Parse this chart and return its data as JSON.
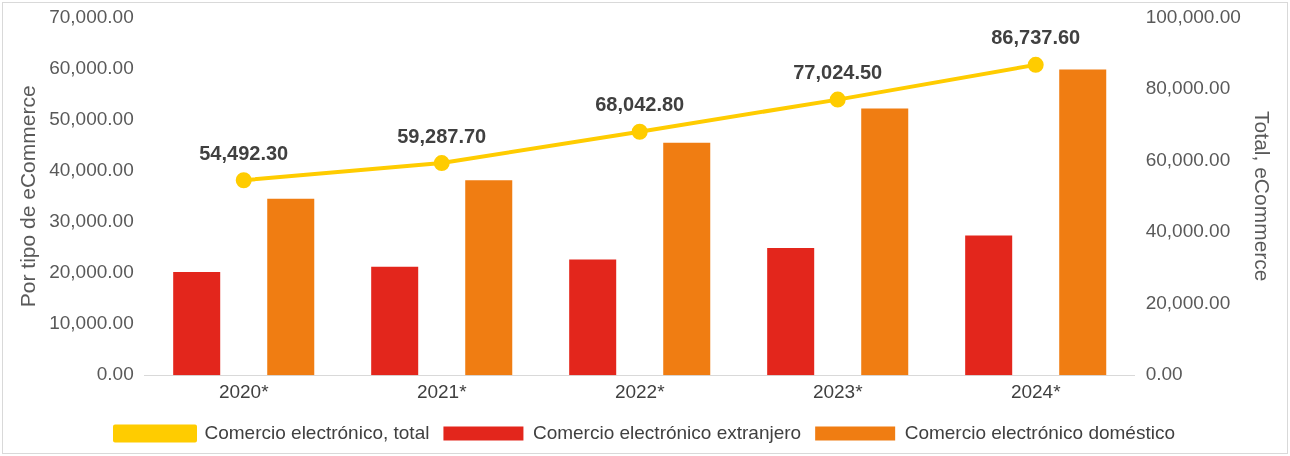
{
  "chart_data": {
    "type": "bar",
    "ylabel": "Por tipo de eCommerce",
    "y2label": "Total, eCommerce",
    "categories": [
      "2020*",
      "2021*",
      "2022*",
      "2023*",
      "2024*"
    ],
    "series": [
      {
        "name": "Comercio electrónico extranjero",
        "color": "#e3261c",
        "values": [
          20200,
          21200,
          22650,
          24900,
          27350
        ]
      },
      {
        "name": "Comercio electrónico doméstico",
        "color": "#f07d12",
        "values": [
          34500,
          38150,
          45500,
          52200,
          59800
        ]
      },
      {
        "name": "Comercio electrónico, total",
        "type": "line",
        "axis": "y2",
        "color": "#ffcc00",
        "values": [
          54492.3,
          59287.7,
          68042.8,
          77024.5,
          86737.6
        ],
        "value_labels": [
          "54,492.30",
          "59,287.70",
          "68,042.80",
          "77,024.50",
          "86,737.60"
        ]
      }
    ],
    "ylim": [
      0,
      70000
    ],
    "yticks": [
      {
        "value": 0,
        "label": "0.00"
      },
      {
        "value": 10000,
        "label": "10,000.00"
      },
      {
        "value": 20000,
        "label": "20,000.00"
      },
      {
        "value": 30000,
        "label": "30,000.00"
      },
      {
        "value": 40000,
        "label": "40,000.00"
      },
      {
        "value": 50000,
        "label": "50,000.00"
      },
      {
        "value": 60000,
        "label": "60,000.00"
      },
      {
        "value": 70000,
        "label": "70,000.00"
      }
    ],
    "y2lim": [
      0,
      100000
    ],
    "y2ticks": [
      {
        "value": 0,
        "label": "0.00"
      },
      {
        "value": 20000,
        "label": "20,000.00"
      },
      {
        "value": 40000,
        "label": "40,000.00"
      },
      {
        "value": 60000,
        "label": "60,000.00"
      },
      {
        "value": 80000,
        "label": "80,000.00"
      },
      {
        "value": 100000,
        "label": "100,000.00"
      }
    ],
    "grid": false,
    "legend": "bottom",
    "marker": "circle",
    "line_style": "solid"
  }
}
